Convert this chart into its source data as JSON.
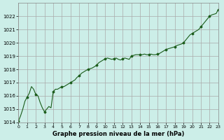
{
  "title": "Graphe pression niveau de la mer (hPa)",
  "xlabel": "",
  "ylabel": "",
  "bg_color": "#cceee8",
  "grid_color": "#aaaaaa",
  "line_color": "#1a5c1a",
  "marker_color": "#1a5c1a",
  "xlim": [
    0,
    23
  ],
  "ylim": [
    1014,
    1023
  ],
  "yticks": [
    1014,
    1015,
    1016,
    1017,
    1018,
    1019,
    1020,
    1021,
    1022
  ],
  "xticks": [
    0,
    1,
    2,
    3,
    4,
    5,
    6,
    7,
    8,
    9,
    10,
    11,
    12,
    13,
    14,
    15,
    16,
    17,
    18,
    19,
    20,
    21,
    22,
    23
  ],
  "x": [
    0,
    0.25,
    0.5,
    0.75,
    1.0,
    1.25,
    1.5,
    1.75,
    2.0,
    2.25,
    2.5,
    2.75,
    3.0,
    3.25,
    3.5,
    3.75,
    4.0,
    4.25,
    4.5,
    4.75,
    5.0,
    5.25,
    5.5,
    5.75,
    6.0,
    6.25,
    6.5,
    6.75,
    7.0,
    7.25,
    7.5,
    7.75,
    8.0,
    8.25,
    8.5,
    8.75,
    9.0,
    9.25,
    9.5,
    9.75,
    10.0,
    10.25,
    10.5,
    10.75,
    11.0,
    11.25,
    11.5,
    11.75,
    12.0,
    12.25,
    12.5,
    12.75,
    13.0,
    13.25,
    13.5,
    13.75,
    14.0,
    14.25,
    14.5,
    14.75,
    15.0,
    15.25,
    15.5,
    15.75,
    16.0,
    16.25,
    16.5,
    16.75,
    17.0,
    17.25,
    17.5,
    17.75,
    18.0,
    18.25,
    18.5,
    18.75,
    19.0,
    19.25,
    19.5,
    19.75,
    20.0,
    20.25,
    20.5,
    20.75,
    21.0,
    21.25,
    21.5,
    21.75,
    22.0,
    22.25,
    22.5,
    22.75,
    23.0
  ],
  "y": [
    1014.1,
    1014.5,
    1015.0,
    1015.6,
    1015.9,
    1016.2,
    1016.7,
    1016.5,
    1016.1,
    1016.0,
    1015.5,
    1015.1,
    1014.8,
    1015.0,
    1015.2,
    1015.1,
    1016.3,
    1016.5,
    1016.5,
    1016.6,
    1016.7,
    1016.7,
    1016.8,
    1016.9,
    1017.0,
    1017.1,
    1017.2,
    1017.4,
    1017.5,
    1017.7,
    1017.8,
    1017.9,
    1018.0,
    1018.05,
    1018.1,
    1018.2,
    1018.3,
    1018.5,
    1018.6,
    1018.7,
    1018.8,
    1018.85,
    1018.8,
    1018.75,
    1018.8,
    1018.85,
    1018.75,
    1018.7,
    1018.8,
    1018.85,
    1018.8,
    1018.75,
    1019.0,
    1019.05,
    1019.1,
    1019.1,
    1019.1,
    1019.1,
    1019.15,
    1019.1,
    1019.1,
    1019.15,
    1019.1,
    1019.1,
    1019.15,
    1019.2,
    1019.3,
    1019.4,
    1019.5,
    1019.55,
    1019.6,
    1019.65,
    1019.7,
    1019.8,
    1019.85,
    1019.9,
    1020.0,
    1020.2,
    1020.4,
    1020.6,
    1020.7,
    1020.8,
    1020.9,
    1021.0,
    1021.2,
    1021.4,
    1021.6,
    1021.8,
    1022.0,
    1022.1,
    1022.15,
    1022.2,
    1022.5
  ]
}
